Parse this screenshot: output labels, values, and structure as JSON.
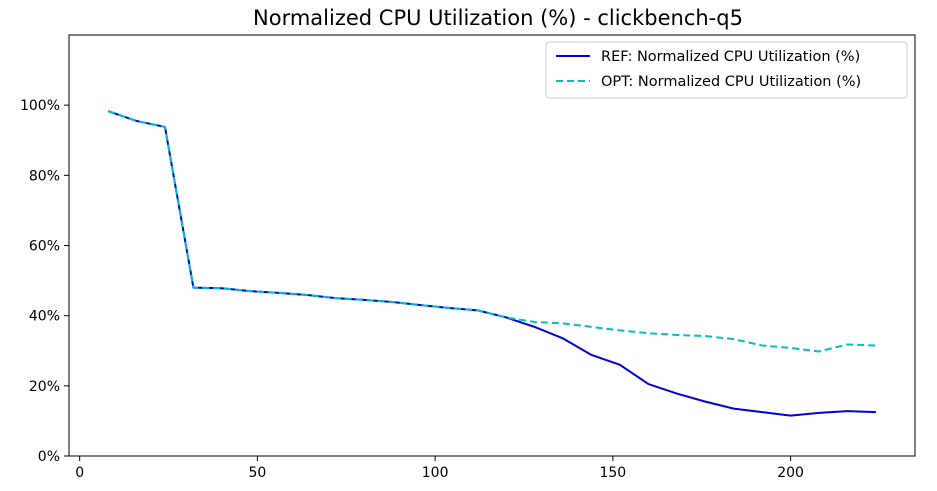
{
  "chart_data": {
    "type": "line",
    "title": "Normalized CPU Utilization (%) - clickbench-q5",
    "xlabel": "",
    "ylabel": "",
    "xlim": [
      -3,
      235
    ],
    "ylim": [
      0,
      120
    ],
    "x_ticks": [
      0,
      50,
      100,
      150,
      200
    ],
    "y_ticks": [
      0,
      20,
      40,
      60,
      80,
      100
    ],
    "y_tick_labels": [
      "0%",
      "20%",
      "40%",
      "60%",
      "80%",
      "100%"
    ],
    "grid": false,
    "legend_position": "top-right",
    "series": [
      {
        "name": "REF: Normalized CPU Utilization (%)",
        "color": "#0000dd",
        "style": "solid",
        "x": [
          8,
          16,
          24,
          32,
          40,
          48,
          56,
          64,
          72,
          80,
          88,
          96,
          104,
          112,
          120,
          128,
          136,
          144,
          152,
          160,
          168,
          176,
          184,
          192,
          200,
          208,
          216,
          224
        ],
        "y": [
          98.3,
          95.5,
          93.8,
          48.0,
          47.8,
          47.0,
          46.5,
          45.9,
          45.0,
          44.5,
          43.9,
          43.0,
          42.2,
          41.5,
          39.5,
          36.8,
          33.5,
          28.8,
          26.0,
          20.5,
          17.8,
          15.5,
          13.5,
          12.5,
          11.5,
          12.3,
          12.8,
          12.5
        ]
      },
      {
        "name": "OPT: Normalized CPU Utilization (%)",
        "color": "#00bfbf",
        "style": "dashed",
        "x": [
          8,
          16,
          24,
          32,
          40,
          48,
          56,
          64,
          72,
          80,
          88,
          96,
          104,
          112,
          120,
          128,
          136,
          144,
          152,
          160,
          168,
          176,
          184,
          192,
          200,
          208,
          216,
          224
        ],
        "y": [
          98.3,
          95.5,
          93.8,
          48.0,
          47.8,
          47.0,
          46.5,
          45.9,
          45.0,
          44.5,
          43.9,
          43.0,
          42.2,
          41.5,
          39.5,
          38.2,
          37.8,
          36.8,
          35.8,
          35.0,
          34.5,
          34.2,
          33.3,
          31.5,
          30.8,
          29.8,
          31.8,
          31.5
        ]
      }
    ]
  }
}
